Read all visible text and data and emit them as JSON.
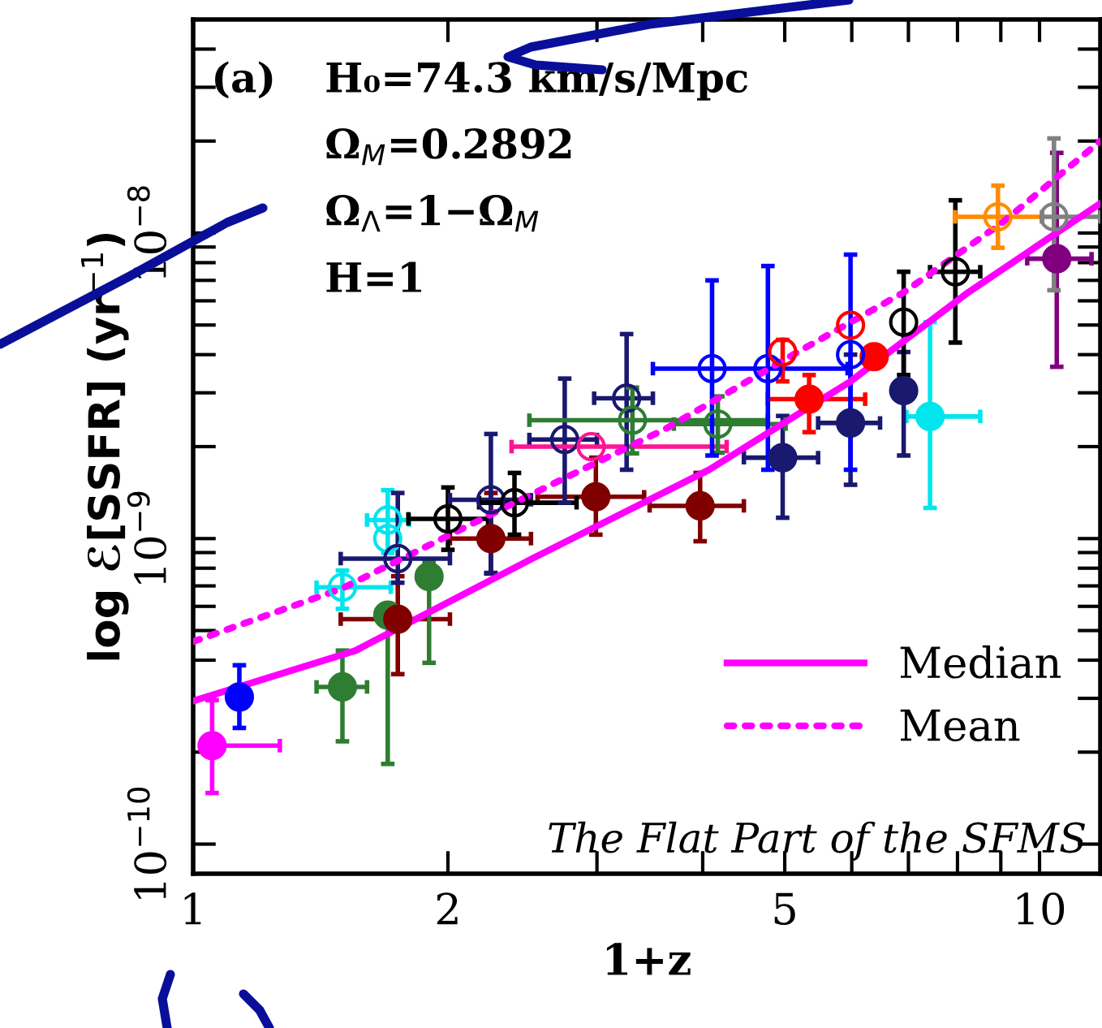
{
  "chart_data": {
    "type": "scatter",
    "xlabel": "1+z",
    "ylabel": "log ℰ[SSFR] (yr$^{−1}$)",
    "log": "xy",
    "xlim": [
      1,
      11.8
    ],
    "ylim": [
      8e-11,
      5e-08
    ],
    "xticks": [
      1,
      2,
      {
        "value": 3,
        "label": null
      },
      {
        "value": 4,
        "label": null
      },
      5,
      {
        "value": 6,
        "label": null
      },
      {
        "value": 7,
        "label": null
      },
      {
        "value": 8,
        "label": null
      },
      {
        "value": 9,
        "label": null
      },
      10
    ],
    "yticks": [
      {
        "value": 1e-10,
        "label": "10$^{−10}$"
      },
      {
        "value": 2e-10,
        "label": null
      },
      {
        "value": 3e-10,
        "label": null
      },
      {
        "value": 4e-10,
        "label": null
      },
      {
        "value": 5e-10,
        "label": null
      },
      {
        "value": 6e-10,
        "label": null
      },
      {
        "value": 7e-10,
        "label": null
      },
      {
        "value": 8e-10,
        "label": null
      },
      {
        "value": 9e-10,
        "label": null
      },
      {
        "value": 1e-09,
        "label": "10$^{−9}$"
      },
      {
        "value": 2e-09,
        "label": null
      },
      {
        "value": 3e-09,
        "label": null
      },
      {
        "value": 4e-09,
        "label": null
      },
      {
        "value": 5e-09,
        "label": null
      },
      {
        "value": 6e-09,
        "label": null
      },
      {
        "value": 7e-09,
        "label": null
      },
      {
        "value": 8e-09,
        "label": null
      },
      {
        "value": 9e-09,
        "label": null
      },
      {
        "value": 1e-08,
        "label": "10$^{−8}$"
      },
      {
        "value": 2e-08,
        "label": null
      },
      {
        "value": 3e-08,
        "label": null
      },
      {
        "value": 4e-08,
        "label": null
      }
    ],
    "grid": false,
    "legend": "bottom right",
    "annotations": [
      "(a)",
      "H₀=74.3 km/s/Mpc",
      "Ω$_{M}$=0.2892",
      "Ω$_{Λ}$=1−Ω$_{M}$",
      "H=1",
      "The Flat Part of the SFMS"
    ],
    "series": [
      {
        "type": "line",
        "name": "Median",
        "color": "#ff00ff",
        "line_style": "solid",
        "x": [
          1.0,
          1.555,
          2.516,
          4.07,
          5.98,
          8.234,
          11.8
        ],
        "values": [
          2.94e-10,
          4.3e-10,
          8.6e-10,
          1.68e-09,
          3.27e-09,
          6.39e-09,
          1.25e-08
        ]
      },
      {
        "type": "line",
        "name": "Mean",
        "color": "#ff00ff",
        "line_style": "dotted",
        "x": [
          1.0,
          1.5,
          2.397,
          3.63,
          5.18,
          6.91,
          9.07,
          11.8
        ],
        "values": [
          4.6e-10,
          6.87e-10,
          1.31e-09,
          2.3e-09,
          4.08e-09,
          6.39e-09,
          1.09e-08,
          2e-08
        ]
      },
      {
        "marker": "circle",
        "x": [
          1.053,
          1.134,
          1.501,
          1.698,
          1.745,
          1.9,
          2.248,
          2.991,
          3.972,
          4.972,
          7.424,
          5.343,
          5.98,
          6.377,
          6.91,
          10.48
        ],
        "values": [
          2.1e-10,
          3.03e-10,
          3.27e-10,
          5.62e-10,
          5.45e-10,
          7.51e-10,
          1e-09,
          1.37e-09,
          1.28e-09,
          1.84e-09,
          2.51e-09,
          2.86e-09,
          2.39e-09,
          3.94e-09,
          3.05e-09,
          8.24e-09
        ],
        "colors": [
          "#ff00ff",
          "#0000ff",
          "#2e7d32",
          "#2e7d32",
          "#800000",
          "#2e7d32",
          "#800000",
          "#800000",
          "#800000",
          "#191970",
          "#00e5ee",
          "#ff0000",
          "#191970",
          "#ff0000",
          "#191970",
          "#800080"
        ],
        "xerrors": [
          [
            1.053,
            1.266
          ],
          null,
          [
            1.399,
            1.605
          ],
          null,
          [
            1.494,
            2.011
          ],
          null,
          [
            2.011,
            2.507
          ],
          [
            2.552,
            3.411
          ],
          [
            3.462,
            4.474
          ],
          [
            4.474,
            5.475
          ],
          [
            6.961,
            8.511
          ],
          [
            4.776,
            6.223
          ],
          [
            5.475,
            6.48
          ],
          null,
          null,
          [
            9.67,
            11.52
          ]
        ],
        "errors": [
          [
            1.47e-10,
            2.96e-10
          ],
          [
            2.4e-10,
            3.85e-10
          ],
          [
            2.17e-10,
            4.3e-10
          ],
          [
            1.83e-10,
            6.04e-10
          ],
          [
            3.6e-10,
            7.53e-10
          ],
          [
            3.92e-10,
            8.42e-10
          ],
          [
            7.68e-10,
            1.41e-09
          ],
          [
            1.03e-09,
            1.84e-09
          ],
          [
            9.8e-10,
            1.64e-09
          ],
          [
            1.17e-09,
            2.52e-09
          ],
          [
            1.26e-09,
            5.11e-09
          ],
          [
            2.23e-09,
            3.43e-09
          ],
          [
            1.5e-09,
            4e-09
          ],
          null,
          [
            1.87e-09,
            4.08e-09
          ],
          [
            3.65e-09,
            1.83e-08
          ]
        ]
      },
      {
        "marker": "circle",
        "x": [
          1.501,
          1.698,
          1.698,
          1.745,
          2.0,
          2.248,
          2.397,
          2.748,
          2.953,
          3.252,
          3.304,
          4.168,
          4.103,
          4.776,
          4.972,
          5.98,
          5.98,
          6.91,
          7.953,
          8.93,
          10.4
        ],
        "values": [
          6.93e-10,
          1.15e-09,
          1e-09,
          8.6e-10,
          1.16e-09,
          1.34e-09,
          1.31e-09,
          2.11e-09,
          2e-09,
          2.88e-09,
          2.44e-09,
          2.37e-09,
          3.6e-09,
          3.6e-09,
          4.08e-09,
          4e-09,
          4.99e-09,
          5.11e-09,
          7.47e-09,
          1.13e-08,
          1.13e-08
        ],
        "colors": [
          "#00e5ee",
          "#00e5ee",
          "#00e5ee",
          "#191970",
          "#000000",
          "#191970",
          "#000000",
          "#191970",
          "#ff1493",
          "#191970",
          "#2e7d32",
          "#2e7d32",
          "#0000ff",
          "#0000ff",
          "#ff0000",
          "#0000ff",
          "#ff0000",
          "#000000",
          "#000000",
          "#ff8c00",
          "#808080"
        ],
        "xerrors": [
          [
            1.399,
            1.712
          ],
          [
            1.605,
            1.8
          ],
          null,
          [
            1.494,
            2.011
          ],
          [
            1.796,
            2.231
          ],
          [
            2.011,
            2.507
          ],
          [
            2.177,
            2.838
          ],
          [
            2.496,
            3.0
          ],
          [
            2.378,
            4.269
          ],
          [
            2.977,
            3.493
          ],
          [
            2.496,
            4.776
          ],
          [
            3.698,
            5.012
          ],
          [
            3.493,
            5.932
          ],
          null,
          null,
          null,
          null,
          null,
          [
            7.424,
            8.511
          ],
          [
            7.946,
            10.07
          ],
          [
            10.07,
            11.8
          ]
        ],
        "errors": [
          [
            5.89e-10,
            7.86e-10
          ],
          [
            8.98e-10,
            1.44e-09
          ],
          null,
          [
            7.17e-10,
            1.41e-09
          ],
          [
            9.19e-10,
            1.47e-09
          ],
          [
            7.72e-10,
            2.2e-09
          ],
          [
            1.03e-09,
            1.64e-09
          ],
          [
            1.31e-09,
            3.34e-09
          ],
          null,
          [
            1.68e-09,
            4.67e-09
          ],
          [
            1.9e-09,
            3.12e-09
          ],
          [
            1.91e-09,
            2.92e-09
          ],
          [
            1.87e-09,
            7e-09
          ],
          [
            1.68e-09,
            7.8e-09
          ],
          [
            3.27e-09,
            4.47e-09
          ],
          [
            1.68e-09,
            8.5e-09
          ],
          null,
          [
            3.43e-09,
            7.47e-09
          ],
          [
            4.38e-09,
            1.28e-08
          ],
          [
            8.95e-09,
            1.43e-08
          ],
          [
            6.5e-09,
            2.04e-08
          ]
        ]
      }
    ]
  }
}
